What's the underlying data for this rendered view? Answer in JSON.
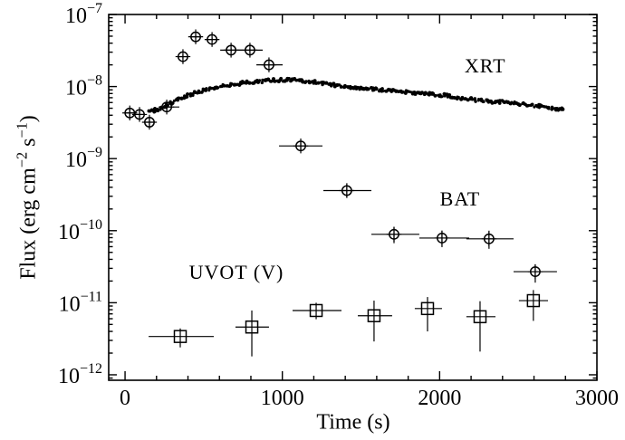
{
  "figure": {
    "background_color": "#ffffff",
    "frame_color": "#000000"
  },
  "chart_data": {
    "type": "scatter",
    "title": "",
    "xlabel": "Time (s)",
    "ylabel": "Flux (erg cm⁻² s⁻¹)",
    "ylabel_parts": [
      {
        "text": "Flux (erg cm"
      },
      {
        "text": "−2",
        "sup": true
      },
      {
        "text": " s"
      },
      {
        "text": "−1",
        "sup": true
      },
      {
        "text": ")"
      }
    ],
    "grid": false,
    "legend_position": "inline-annotations",
    "axes": {
      "x": {
        "scale": "linear",
        "min": -104,
        "max": 3000,
        "major_ticks": [
          0,
          1000,
          2000,
          3000
        ],
        "minor_step": 200
      },
      "y": {
        "scale": "log",
        "min": 8.4e-13,
        "max": 1e-07,
        "decade_ticks": [
          -7,
          -8,
          -9,
          -10,
          -11,
          -12
        ]
      }
    },
    "series": [
      {
        "name": "XRT",
        "marker": "filled-dot",
        "style": "dense-noisy-curve",
        "points": [
          [
            155,
            4.4e-09
          ],
          [
            225,
            5e-09
          ],
          [
            357,
            6.9e-09
          ],
          [
            501,
            9e-09
          ],
          [
            645,
            1.04e-08
          ],
          [
            789,
            1.15e-08
          ],
          [
            933,
            1.22e-08
          ],
          [
            1040,
            1.25e-08
          ],
          [
            1210,
            1.15e-08
          ],
          [
            1395,
            1e-08
          ],
          [
            1680,
            8.8e-09
          ],
          [
            1970,
            7.8e-09
          ],
          [
            2260,
            6.4e-09
          ],
          [
            2490,
            5.9e-09
          ],
          [
            2660,
            5.2e-09
          ],
          [
            2790,
            4.8e-09
          ]
        ]
      },
      {
        "name": "BAT",
        "marker": "circle-plus",
        "points": [
          {
            "t": 30,
            "t_lo": 5,
            "t_hi": 60,
            "flux": 4.3e-09,
            "flux_lo": 3.7e-09,
            "flux_hi": 5e-09
          },
          {
            "t": 92,
            "t_lo": 65,
            "t_hi": 120,
            "flux": 4.1e-09,
            "flux_lo": 3.5e-09,
            "flux_hi": 4.8e-09
          },
          {
            "t": 155,
            "t_lo": 125,
            "t_hi": 185,
            "flux": 3.2e-09,
            "flux_lo": 2.7e-09,
            "flux_hi": 3.8e-09
          },
          {
            "t": 265,
            "t_lo": 213,
            "t_hi": 345,
            "flux": 5.2e-09,
            "flux_lo": 4.6e-09,
            "flux_hi": 5.9e-09
          },
          {
            "t": 368,
            "t_lo": 340,
            "t_hi": 395,
            "flux": 2.6e-08,
            "flux_lo": 2.4e-08,
            "flux_hi": 2.8e-08
          },
          {
            "t": 449,
            "t_lo": 420,
            "t_hi": 478,
            "flux": 4.9e-08,
            "flux_lo": 4.6e-08,
            "flux_hi": 5.2e-08
          },
          {
            "t": 553,
            "t_lo": 508,
            "t_hi": 598,
            "flux": 4.5e-08,
            "flux_lo": 4.2e-08,
            "flux_hi": 4.8e-08
          },
          {
            "t": 674,
            "t_lo": 605,
            "t_hi": 748,
            "flux": 3.2e-08,
            "flux_lo": 3e-08,
            "flux_hi": 3.4e-08
          },
          {
            "t": 794,
            "t_lo": 714,
            "t_hi": 875,
            "flux": 3.2e-08,
            "flux_lo": 3e-08,
            "flux_hi": 3.4e-08
          },
          {
            "t": 915,
            "t_lo": 835,
            "t_hi": 1002,
            "flux": 2e-08,
            "flux_lo": 1.85e-08,
            "flux_hi": 2.15e-08
          },
          {
            "t": 1117,
            "t_lo": 979,
            "t_hi": 1255,
            "flux": 1.5e-09,
            "flux_lo": 1.3e-09,
            "flux_hi": 1.7e-09
          },
          {
            "t": 1410,
            "t_lo": 1261,
            "t_hi": 1566,
            "flux": 3.6e-10,
            "flux_lo": 2.9e-10,
            "flux_hi": 4.4e-10
          },
          {
            "t": 1710,
            "t_lo": 1566,
            "t_hi": 1871,
            "flux": 8.9e-11,
            "flux_lo": 6.7e-11,
            "flux_hi": 1.13e-10
          },
          {
            "t": 2015,
            "t_lo": 1871,
            "t_hi": 2188,
            "flux": 7.9e-11,
            "flux_lo": 5.9e-11,
            "flux_hi": 1e-10
          },
          {
            "t": 2314,
            "t_lo": 2170,
            "t_hi": 2470,
            "flux": 7.7e-11,
            "flux_lo": 5.6e-11,
            "flux_hi": 1e-10
          },
          {
            "t": 2608,
            "t_lo": 2470,
            "t_hi": 2746,
            "flux": 2.7e-11,
            "flux_lo": 1.9e-11,
            "flux_hi": 3.4e-11
          }
        ]
      },
      {
        "name": "UVOT (V)",
        "marker": "open-square",
        "points": [
          {
            "t": 351,
            "t_lo": 150,
            "t_hi": 564,
            "flux": 3.4e-12,
            "flux_lo": 2.4e-12,
            "flux_hi": 4.4e-12
          },
          {
            "t": 806,
            "t_lo": 702,
            "t_hi": 915,
            "flux": 4.6e-12,
            "flux_lo": 1.8e-12,
            "flux_hi": 7.8e-12
          },
          {
            "t": 1215,
            "t_lo": 1065,
            "t_hi": 1376,
            "flux": 7.8e-12,
            "flux_lo": 5.9e-12,
            "flux_hi": 1e-11
          },
          {
            "t": 1583,
            "t_lo": 1480,
            "t_hi": 1698,
            "flux": 6.6e-12,
            "flux_lo": 2.9e-12,
            "flux_hi": 1.07e-11
          },
          {
            "t": 1923,
            "t_lo": 1842,
            "t_hi": 2015,
            "flux": 8.3e-12,
            "flux_lo": 4e-12,
            "flux_hi": 1.2e-11
          },
          {
            "t": 2257,
            "t_lo": 2170,
            "t_hi": 2355,
            "flux": 6.4e-12,
            "flux_lo": 2.1e-12,
            "flux_hi": 1.05e-11
          },
          {
            "t": 2596,
            "t_lo": 2504,
            "t_hi": 2689,
            "flux": 1.07e-11,
            "flux_lo": 5.6e-12,
            "flux_hi": 1.5e-11
          }
        ]
      }
    ],
    "annotations": [
      {
        "text": "XRT",
        "t": 2290,
        "flux": 1.9e-08
      },
      {
        "text": "BAT",
        "t": 2130,
        "flux": 2.7e-10
      },
      {
        "text": "UVOT (V)",
        "t": 708,
        "flux": 2.6e-11
      }
    ]
  }
}
